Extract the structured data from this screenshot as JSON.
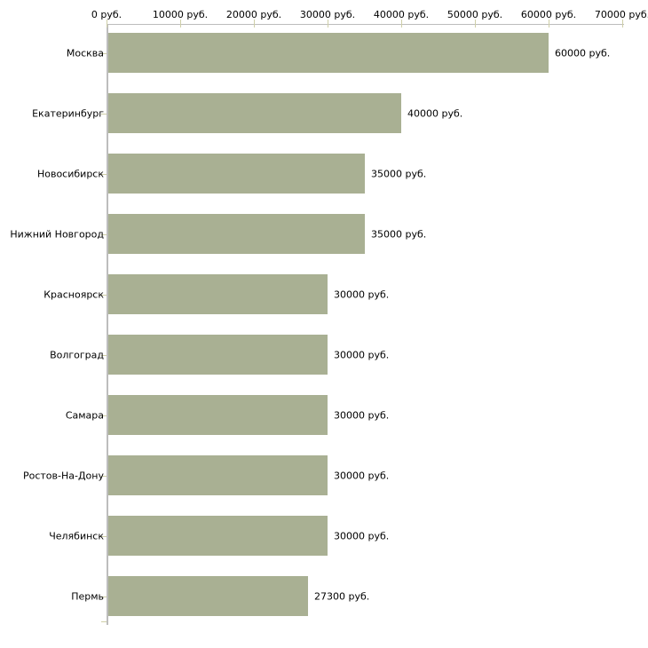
{
  "chart_data": {
    "type": "bar",
    "orientation": "horizontal",
    "title": "",
    "xlabel": "",
    "ylabel": "",
    "xlim": [
      0,
      70000
    ],
    "grid": false,
    "legend": null,
    "categories": [
      "Москва",
      "Екатеринбург",
      "Новосибирск",
      "Нижний Новгород",
      "Красноярск",
      "Волгоград",
      "Самара",
      "Ростов-На-Дону",
      "Челябинск",
      "Пермь"
    ],
    "values": [
      60000,
      40000,
      35000,
      35000,
      30000,
      30000,
      30000,
      30000,
      30000,
      27300
    ],
    "value_labels": [
      "60000 руб.",
      "40000 руб.",
      "35000 руб.",
      "35000 руб.",
      "30000 руб.",
      "30000 руб.",
      "30000 руб.",
      "30000 руб.",
      "30000 руб.",
      "27300 руб."
    ],
    "x_tick_values": [
      0,
      10000,
      20000,
      30000,
      40000,
      50000,
      60000,
      70000
    ],
    "x_tick_labels": [
      "0 руб.",
      "10000 руб.",
      "20000 руб.",
      "30000 руб.",
      "40000 руб.",
      "50000 руб.",
      "60000 руб.",
      "70000 руб."
    ],
    "colors": {
      "bar_fill": "#a9b093",
      "axis_line": "#bdbdbd",
      "tick_mark": "#cfcfa8",
      "text": "#000000",
      "background": "#ffffff"
    }
  }
}
